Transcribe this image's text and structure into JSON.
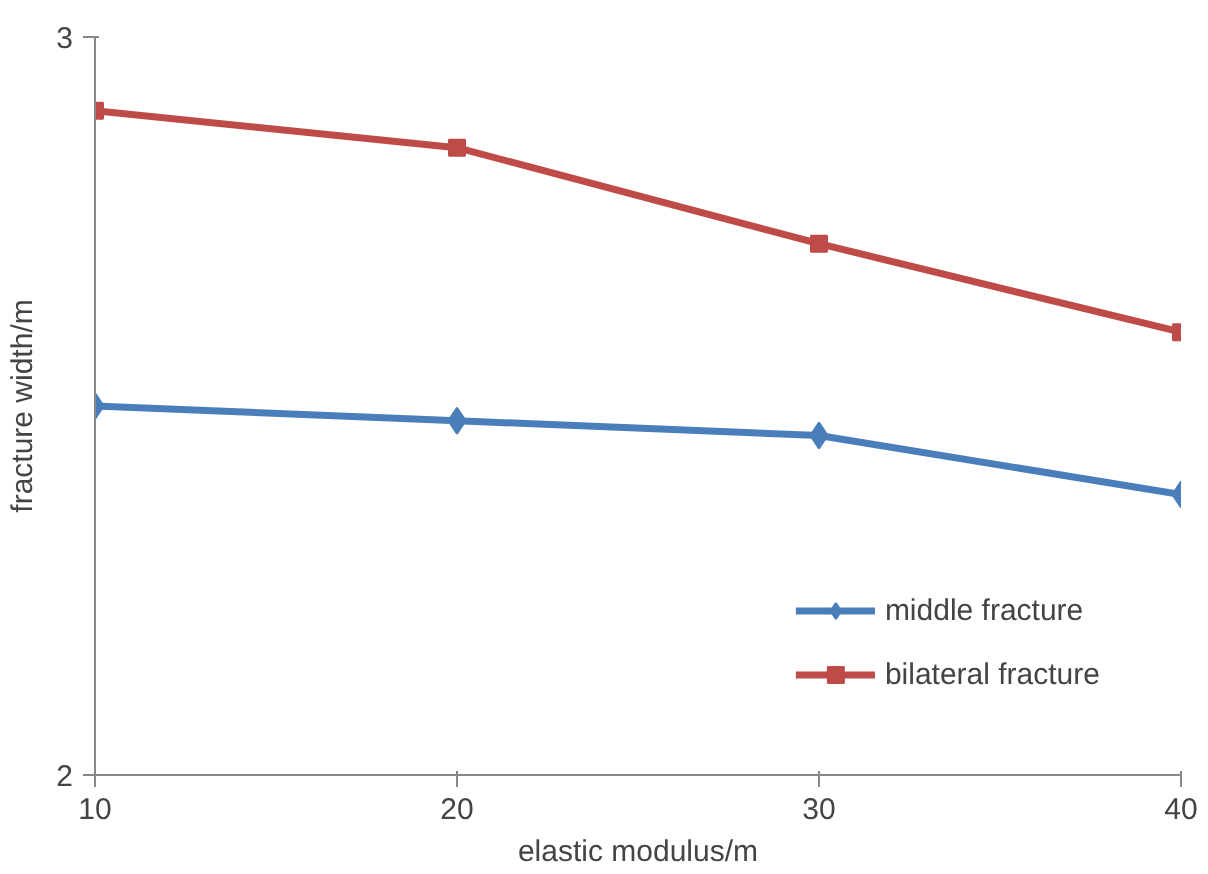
{
  "chart_data": {
    "type": "line",
    "xlabel": "elastic modulus/m",
    "ylabel": "fracture width/m",
    "x": [
      10,
      20,
      30,
      40
    ],
    "xlim": [
      10,
      40
    ],
    "xticks": [
      10,
      20,
      30,
      40
    ],
    "ylim": [
      2,
      3
    ],
    "yticks": [
      2,
      3
    ],
    "grid": false,
    "legend": "bottom right",
    "line_style": "solid",
    "series": [
      {
        "name": "middle fracture",
        "color": "#4a7ebb",
        "marker": "diamond",
        "values": [
          2.5,
          2.48,
          2.46,
          2.38
        ]
      },
      {
        "name": "bilateral fracture",
        "color": "#be4b48",
        "marker": "square",
        "values": [
          2.9,
          2.85,
          2.72,
          2.6
        ]
      }
    ]
  }
}
